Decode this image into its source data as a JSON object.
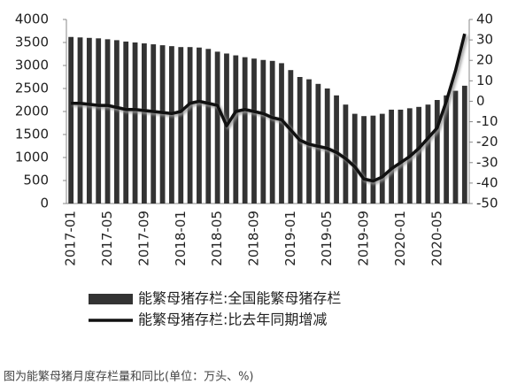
{
  "chart_data": {
    "type": "bar-line",
    "categories": [
      "2017-01",
      null,
      null,
      null,
      "2017-05",
      null,
      null,
      null,
      "2017-09",
      null,
      null,
      null,
      "2018-01",
      null,
      null,
      null,
      "2018-05",
      null,
      null,
      null,
      "2018-09",
      null,
      null,
      null,
      "2019-01",
      null,
      null,
      null,
      "2019-05",
      null,
      null,
      null,
      "2019-09",
      null,
      null,
      null,
      "2020-01",
      null,
      null,
      null,
      "2020-05",
      null,
      null,
      null
    ],
    "series": [
      {
        "name": "能繁母猪存栏:全国能繁母猪存栏",
        "type": "bar",
        "color": "#333333",
        "values": [
          3620,
          3610,
          3600,
          3590,
          3570,
          3550,
          3520,
          3500,
          3480,
          3460,
          3440,
          3420,
          3400,
          3400,
          3390,
          3360,
          3300,
          3260,
          3220,
          3180,
          3150,
          3120,
          3100,
          3050,
          2900,
          2750,
          2700,
          2600,
          2500,
          2350,
          2150,
          1950,
          1900,
          1910,
          1950,
          2040,
          2040,
          2070,
          2100,
          2150,
          2250,
          2350,
          2450,
          2560
        ]
      },
      {
        "name": "能繁母猪存栏:比去年同期增减",
        "type": "line",
        "axis": "y2",
        "color": "#111111",
        "values": [
          -1,
          -1,
          -1.5,
          -2,
          -2,
          -3,
          -4,
          -4,
          -4.5,
          -5,
          -5.5,
          -6,
          -5,
          -1,
          0,
          -1,
          -2,
          -12,
          -5,
          -4,
          -5,
          -6,
          -8,
          -9,
          -14,
          -19,
          -21,
          -22,
          -23,
          -25,
          -28,
          -32,
          -38,
          -39,
          -37,
          -33,
          -30,
          -27,
          -23,
          -18,
          -13,
          0,
          15,
          33
        ]
      }
    ],
    "ylim": [
      0,
      4000
    ],
    "yticks": [
      0,
      500,
      1000,
      1500,
      2000,
      2500,
      3000,
      3500,
      4000
    ],
    "y2lim": [
      -50,
      40
    ],
    "y2ticks": [
      -50,
      -40,
      -30,
      -20,
      -10,
      0,
      10,
      20,
      30,
      40
    ],
    "caption": "图为能繁母猪月度存栏量和同比(单位：万头、%)"
  }
}
